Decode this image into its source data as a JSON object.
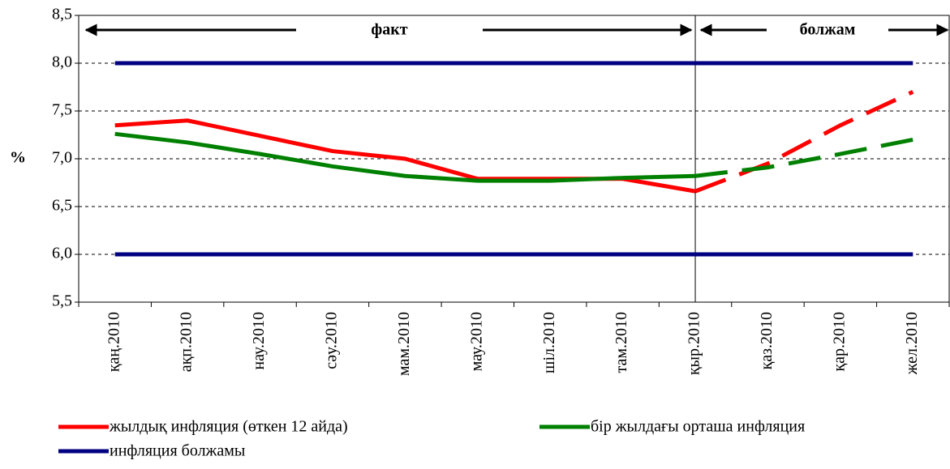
{
  "chart_data": {
    "type": "line",
    "y_label": "%",
    "annotations": [
      "факт",
      "болжам"
    ],
    "categories": [
      "қаң.2010",
      "ақп.2010",
      "нау.2010",
      "сәу.2010",
      "мам.2010",
      "мау.2010",
      "шіл.2010",
      "там.2010",
      "қыр.2010",
      "қаз.2010",
      "қар.2010",
      "жел.2010"
    ],
    "series": [
      {
        "name": "жылдық инфляция (өткен 12 айда)",
        "color": "#ff0000",
        "values": [
          7.35,
          7.4,
          7.24,
          7.08,
          7.0,
          6.79,
          6.79,
          6.79,
          6.66,
          6.95,
          7.35,
          7.7
        ]
      },
      {
        "name": "бір жылдағы орташа инфляция",
        "color": "#008000",
        "values": [
          7.26,
          7.17,
          7.05,
          6.92,
          6.82,
          6.77,
          6.77,
          6.8,
          6.82,
          6.91,
          7.05,
          7.2
        ]
      },
      {
        "name": "инфляция болжамы",
        "color": "#000080",
        "values": [
          8,
          8,
          8,
          8,
          8,
          8,
          8,
          8,
          8,
          8,
          8,
          8
        ],
        "lower": [
          6,
          6,
          6,
          6,
          6,
          6,
          6,
          6,
          6,
          6,
          6,
          6
        ]
      }
    ],
    "dashed_from": 8,
    "ylim": [
      5.5,
      8.5
    ],
    "yticks": [
      {
        "value": 5.5,
        "label": "5,5"
      },
      {
        "value": 6,
        "label": "6,0"
      },
      {
        "value": 6.5,
        "label": "6,5"
      },
      {
        "value": 7,
        "label": "7,0"
      },
      {
        "value": 7.5,
        "label": "7,5"
      },
      {
        "value": 8,
        "label": "8,0"
      },
      {
        "value": 8.5,
        "label": "8,5"
      }
    ],
    "grid": true
  }
}
